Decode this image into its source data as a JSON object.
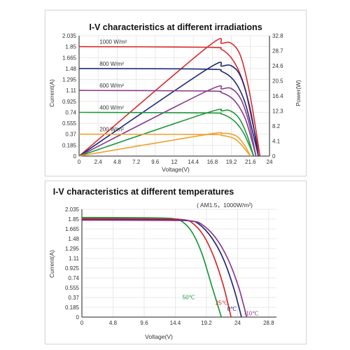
{
  "chart_data": [
    {
      "type": "line",
      "title": "I-V characteristics at different irradiations",
      "xlabel": "Voltage(V)",
      "ylabel": "Current(A)",
      "y2label": "Power(W)",
      "xlim": [
        0,
        24
      ],
      "ylim": [
        0,
        2.035
      ],
      "y2lim": [
        0,
        32.8
      ],
      "x_ticks": [
        "0",
        "2.4",
        "4.8",
        "7.2",
        "9.6",
        "12",
        "14.4",
        "16.8",
        "19.2",
        "21.6",
        "24"
      ],
      "y_ticks": [
        "0",
        "0.185",
        "0.37",
        "0.555",
        "0.74",
        "0.925",
        "1.11",
        "1.295",
        "1.48",
        "1.665",
        "1.85",
        "2.035"
      ],
      "y2_ticks": [
        "0",
        "4.1",
        "8.2",
        "12.3",
        "16.4",
        "20.5",
        "24.6",
        "28.7",
        "32.8"
      ],
      "series": [
        {
          "name": "1000 W/m²",
          "color": "#d92a2a",
          "isc": 1.85,
          "voc": 22.8,
          "iv": [
            [
              0,
              1.85
            ],
            [
              16,
              1.84
            ],
            [
              18,
              1.8
            ],
            [
              19.5,
              1.6
            ],
            [
              20.8,
              1.2
            ],
            [
              21.8,
              0.6
            ],
            [
              22.8,
              0
            ]
          ],
          "power": [
            [
              0,
              0
            ],
            [
              16,
              29.4
            ],
            [
              18,
              30.7
            ],
            [
              19.2,
              30.7
            ],
            [
              20.4,
              27
            ],
            [
              21.6,
              16
            ],
            [
              22.8,
              0
            ]
          ]
        },
        {
          "name": "800 W/m²",
          "color": "#1f2a7a",
          "isc": 1.48,
          "voc": 22.6,
          "iv": [
            [
              0,
              1.48
            ],
            [
              16,
              1.47
            ],
            [
              18,
              1.43
            ],
            [
              19.5,
              1.28
            ],
            [
              20.8,
              0.95
            ],
            [
              21.8,
              0.45
            ],
            [
              22.6,
              0
            ]
          ],
          "power": [
            [
              0,
              0
            ],
            [
              16,
              23.5
            ],
            [
              18,
              24.5
            ],
            [
              19.2,
              24.6
            ],
            [
              20.4,
              21.5
            ],
            [
              21.6,
              12.5
            ],
            [
              22.6,
              0
            ]
          ]
        },
        {
          "name": "600 W/m²",
          "color": "#8b3a8b",
          "isc": 1.11,
          "voc": 22.3,
          "iv": [
            [
              0,
              1.11
            ],
            [
              16,
              1.1
            ],
            [
              18,
              1.07
            ],
            [
              19.5,
              0.95
            ],
            [
              20.8,
              0.68
            ],
            [
              21.6,
              0.35
            ],
            [
              22.3,
              0
            ]
          ],
          "power": [
            [
              0,
              0
            ],
            [
              16,
              17.6
            ],
            [
              18,
              18.3
            ],
            [
              19.2,
              18.4
            ],
            [
              20.4,
              15.5
            ],
            [
              21.4,
              9.2
            ],
            [
              22.3,
              0
            ]
          ]
        },
        {
          "name": "400 W/m²",
          "color": "#1c9a3c",
          "isc": 0.74,
          "voc": 22.0,
          "iv": [
            [
              0,
              0.74
            ],
            [
              16,
              0.73
            ],
            [
              18,
              0.71
            ],
            [
              19.5,
              0.6
            ],
            [
              20.6,
              0.42
            ],
            [
              21.4,
              0.2
            ],
            [
              22,
              0
            ]
          ],
          "power": [
            [
              0,
              0
            ],
            [
              16,
              11.7
            ],
            [
              18,
              12.3
            ],
            [
              19,
              12.4
            ],
            [
              20.2,
              10.2
            ],
            [
              21.2,
              5.5
            ],
            [
              22,
              0
            ]
          ]
        },
        {
          "name": "200 W/m²",
          "color": "#f0a12c",
          "isc": 0.37,
          "voc": 21.6,
          "iv": [
            [
              0,
              0.37
            ],
            [
              16,
              0.365
            ],
            [
              18,
              0.35
            ],
            [
              19.5,
              0.3
            ],
            [
              20.4,
              0.2
            ],
            [
              21,
              0.1
            ],
            [
              21.6,
              0
            ]
          ],
          "power": [
            [
              0,
              0
            ],
            [
              16,
              5.85
            ],
            [
              18,
              6.2
            ],
            [
              19,
              6.1
            ],
            [
              20,
              5.2
            ],
            [
              20.9,
              2.8
            ],
            [
              21.6,
              0
            ]
          ]
        }
      ]
    },
    {
      "type": "line",
      "title": "I-V characteristics at different temperatures",
      "subtitle": "( AM1.5，1000W/m²)",
      "xlabel": "Voltage(V)",
      "ylabel": "Current(A)",
      "xlim": [
        0,
        30
      ],
      "ylim": [
        0,
        2.035
      ],
      "x_ticks": [
        "0",
        "4.8",
        "9.6",
        "14.4",
        "19.2",
        "24",
        "28.8"
      ],
      "x_tick_values": [
        0,
        4.8,
        9.6,
        14.4,
        19.2,
        24,
        28.8
      ],
      "y_ticks": [
        "0",
        "0.185",
        "0.37",
        "0.555",
        "0.74",
        "0.925",
        "1.11",
        "1.295",
        "1.48",
        "1.665",
        "1.85",
        "2.035"
      ],
      "series": [
        {
          "name": "50℃",
          "color": "#1c9a3c",
          "iv": [
            [
              0,
              1.88
            ],
            [
              10,
              1.875
            ],
            [
              14,
              1.86
            ],
            [
              15.5,
              1.8
            ],
            [
              17,
              1.6
            ],
            [
              18.5,
              1.2
            ],
            [
              20,
              0.6
            ],
            [
              21.5,
              0
            ]
          ]
        },
        {
          "name": "25℃",
          "color": "#d92a2a",
          "iv": [
            [
              0,
              1.86
            ],
            [
              12,
              1.855
            ],
            [
              15.5,
              1.84
            ],
            [
              17,
              1.78
            ],
            [
              18.7,
              1.55
            ],
            [
              20.3,
              1.15
            ],
            [
              21.8,
              0.6
            ],
            [
              23,
              0
            ]
          ]
        },
        {
          "name": "0℃",
          "color": "#1f2a7a",
          "iv": [
            [
              0,
              1.84
            ],
            [
              13,
              1.835
            ],
            [
              16.5,
              1.82
            ],
            [
              18,
              1.76
            ],
            [
              20,
              1.5
            ],
            [
              21.8,
              1.1
            ],
            [
              23.4,
              0.55
            ],
            [
              24.6,
              0
            ]
          ]
        },
        {
          "name": "-10℃",
          "color": "#8b3a8b",
          "iv": [
            [
              0,
              1.83
            ],
            [
              13.5,
              1.825
            ],
            [
              17,
              1.81
            ],
            [
              18.5,
              1.75
            ],
            [
              20.6,
              1.5
            ],
            [
              22.5,
              1.1
            ],
            [
              24.2,
              0.55
            ],
            [
              25.4,
              0
            ]
          ]
        }
      ]
    }
  ]
}
